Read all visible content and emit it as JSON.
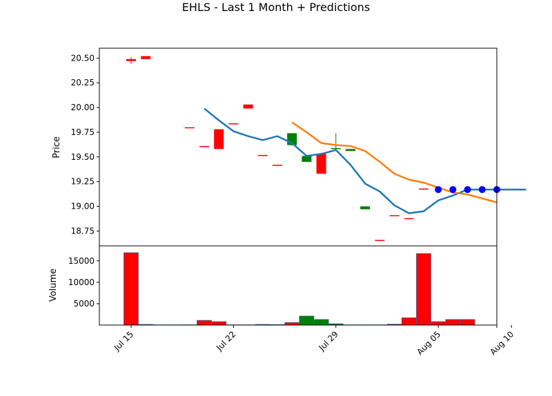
{
  "chart_data": {
    "type": "candlestick",
    "title": "EHLS - Last 1 Month + Predictions",
    "dates": [
      "Jul 15",
      "Jul 16",
      "Jul 17",
      "Jul 18",
      "Jul 19",
      "Jul 20",
      "Jul 21",
      "Jul 22",
      "Jul 23",
      "Jul 24",
      "Jul 25",
      "Jul 26",
      "Jul 27",
      "Jul 28",
      "Jul 29",
      "Jul 30",
      "Jul 31",
      "Aug 01",
      "Aug 02",
      "Aug 03",
      "Aug 04",
      "Aug 05",
      "Aug 06",
      "Aug 07",
      "Aug 08",
      "Aug 09",
      "Aug 10",
      "Aug 11",
      "Aug 12",
      "Aug 13"
    ],
    "price_panel": {
      "ylabel": "Price",
      "ylim": [
        18.6,
        20.6
      ],
      "yticks": [
        18.75,
        19.0,
        19.25,
        19.5,
        19.75,
        20.0,
        20.25,
        20.5
      ],
      "ytick_labels": [
        "18.75",
        "19.00",
        "19.25",
        "19.50",
        "19.75",
        "20.00",
        "20.25",
        "20.50"
      ],
      "candles": [
        {
          "date": "Jul 15",
          "open": 20.49,
          "high": 20.51,
          "low": 20.44,
          "close": 20.47,
          "color": "red"
        },
        {
          "date": "Jul 16",
          "open": 20.52,
          "high": 20.52,
          "low": 20.49,
          "close": 20.49,
          "color": "red"
        },
        {
          "date": "Jul 19",
          "open": 19.8,
          "high": 19.8,
          "low": 19.79,
          "close": 19.79,
          "color": "red"
        },
        {
          "date": "Jul 20",
          "open": 19.61,
          "high": 19.61,
          "low": 19.6,
          "close": 19.6,
          "color": "red"
        },
        {
          "date": "Jul 21",
          "open": 19.78,
          "high": 19.78,
          "low": 19.58,
          "close": 19.58,
          "color": "red"
        },
        {
          "date": "Jul 22",
          "open": 19.84,
          "high": 19.84,
          "low": 19.83,
          "close": 19.83,
          "color": "red"
        },
        {
          "date": "Jul 23",
          "open": 20.03,
          "high": 20.03,
          "low": 19.99,
          "close": 19.99,
          "color": "red"
        },
        {
          "date": "Jul 24",
          "open": 19.52,
          "high": 19.52,
          "low": 19.51,
          "close": 19.51,
          "color": "red"
        },
        {
          "date": "Jul 25",
          "open": 19.42,
          "high": 19.42,
          "low": 19.41,
          "close": 19.41,
          "color": "red"
        },
        {
          "date": "Jul 26",
          "open": 19.62,
          "high": 19.74,
          "low": 19.61,
          "close": 19.74,
          "color": "green"
        },
        {
          "date": "Jul 27",
          "open": 19.45,
          "high": 19.51,
          "low": 19.45,
          "close": 19.51,
          "color": "green"
        },
        {
          "date": "Jul 28",
          "open": 19.53,
          "high": 19.54,
          "low": 19.33,
          "close": 19.33,
          "color": "red"
        },
        {
          "date": "Jul 29",
          "open": 19.58,
          "high": 19.74,
          "low": 19.57,
          "close": 19.59,
          "color": "green"
        },
        {
          "date": "Jul 30",
          "open": 19.56,
          "high": 19.58,
          "low": 19.56,
          "close": 19.58,
          "color": "green"
        },
        {
          "date": "Jul 31",
          "open": 18.97,
          "high": 19.0,
          "low": 18.97,
          "close": 19.0,
          "color": "green"
        },
        {
          "date": "Aug 01",
          "open": 18.66,
          "high": 18.66,
          "low": 18.65,
          "close": 18.65,
          "color": "red"
        },
        {
          "date": "Aug 02",
          "open": 18.91,
          "high": 18.91,
          "low": 18.9,
          "close": 18.9,
          "color": "red"
        },
        {
          "date": "Aug 03",
          "open": 18.88,
          "high": 18.88,
          "low": 18.87,
          "close": 18.87,
          "color": "red"
        },
        {
          "date": "Aug 04",
          "open": 19.18,
          "high": 19.18,
          "low": 19.17,
          "close": 19.17,
          "color": "red"
        }
      ],
      "sma_blue": {
        "x": [
          "Jul 20",
          "Jul 21",
          "Jul 22",
          "Jul 23",
          "Jul 24",
          "Jul 25",
          "Jul 26",
          "Jul 27",
          "Jul 28",
          "Jul 29",
          "Jul 30",
          "Jul 31",
          "Aug 01",
          "Aug 02",
          "Aug 03",
          "Aug 04",
          "Aug 05",
          "Aug 06",
          "Aug 07",
          "Aug 08",
          "Aug 09",
          "Aug 10",
          "Aug 11"
        ],
        "y": [
          19.99,
          19.87,
          19.76,
          19.71,
          19.67,
          19.71,
          19.64,
          19.51,
          19.53,
          19.57,
          19.42,
          19.23,
          19.15,
          19.01,
          18.93,
          18.95,
          19.06,
          19.11,
          19.17,
          19.17,
          19.17,
          19.17,
          19.17
        ]
      },
      "sma_orange": {
        "x": [
          "Jul 26",
          "Jul 27",
          "Jul 28",
          "Jul 29",
          "Jul 30",
          "Jul 31",
          "Aug 01",
          "Aug 02",
          "Aug 03",
          "Aug 04",
          "Aug 05",
          "Aug 06",
          "Aug 07",
          "Aug 08",
          "Aug 09"
        ],
        "y": [
          19.85,
          19.75,
          19.64,
          19.62,
          19.61,
          19.56,
          19.45,
          19.33,
          19.27,
          19.24,
          19.19,
          19.14,
          19.12,
          19.08,
          19.04
        ]
      },
      "predictions": {
        "x": [
          "Aug 05",
          "Aug 06",
          "Aug 07",
          "Aug 08",
          "Aug 09"
        ],
        "y": [
          19.17,
          19.17,
          19.17,
          19.17,
          19.17
        ],
        "color": "#0000ff"
      }
    },
    "volume_panel": {
      "ylabel": "Volume",
      "ylim": [
        0,
        18500
      ],
      "yticks": [
        5000,
        10000,
        15000
      ],
      "ytick_labels": [
        "5000",
        "10000",
        "15000"
      ],
      "bars": [
        {
          "date": "Jul 15",
          "value": 16900,
          "color": "red"
        },
        {
          "date": "Jul 16",
          "value": 150,
          "color": "red"
        },
        {
          "date": "Jul 17",
          "value": 50,
          "color": "red"
        },
        {
          "date": "Jul 18",
          "value": 50,
          "color": "red"
        },
        {
          "date": "Jul 19",
          "value": 60,
          "color": "red"
        },
        {
          "date": "Jul 20",
          "value": 1100,
          "color": "red"
        },
        {
          "date": "Jul 21",
          "value": 800,
          "color": "red"
        },
        {
          "date": "Jul 22",
          "value": 50,
          "color": "red"
        },
        {
          "date": "Jul 23",
          "value": 50,
          "color": "red"
        },
        {
          "date": "Jul 24",
          "value": 150,
          "color": "green"
        },
        {
          "date": "Jul 25",
          "value": 100,
          "color": "green"
        },
        {
          "date": "Jul 26",
          "value": 600,
          "color": "red"
        },
        {
          "date": "Jul 27",
          "value": 2100,
          "color": "green"
        },
        {
          "date": "Jul 28",
          "value": 1300,
          "color": "green"
        },
        {
          "date": "Jul 29",
          "value": 300,
          "color": "green"
        },
        {
          "date": "Jul 30",
          "value": 50,
          "color": "red"
        },
        {
          "date": "Jul 31",
          "value": 50,
          "color": "red"
        },
        {
          "date": "Aug 01",
          "value": 50,
          "color": "red"
        },
        {
          "date": "Aug 02",
          "value": 200,
          "color": "red"
        },
        {
          "date": "Aug 03",
          "value": 1700,
          "color": "red"
        },
        {
          "date": "Aug 04",
          "value": 16700,
          "color": "red"
        },
        {
          "date": "Aug 05",
          "value": 800,
          "color": "red"
        },
        {
          "date": "Aug 06",
          "value": 1300,
          "color": "red"
        },
        {
          "date": "Aug 07",
          "value": 1300,
          "color": "red"
        }
      ]
    },
    "xticks": [
      "Jul 15",
      "Jul 22",
      "Jul 29",
      "Aug 05",
      "Aug 10"
    ],
    "colors": {
      "up": "#008000",
      "down": "#ff0000",
      "sma_blue": "#1f77b4",
      "sma_orange": "#ff7f0e",
      "prediction": "#0000ff",
      "volume_edge": "#3a5fa8"
    }
  }
}
